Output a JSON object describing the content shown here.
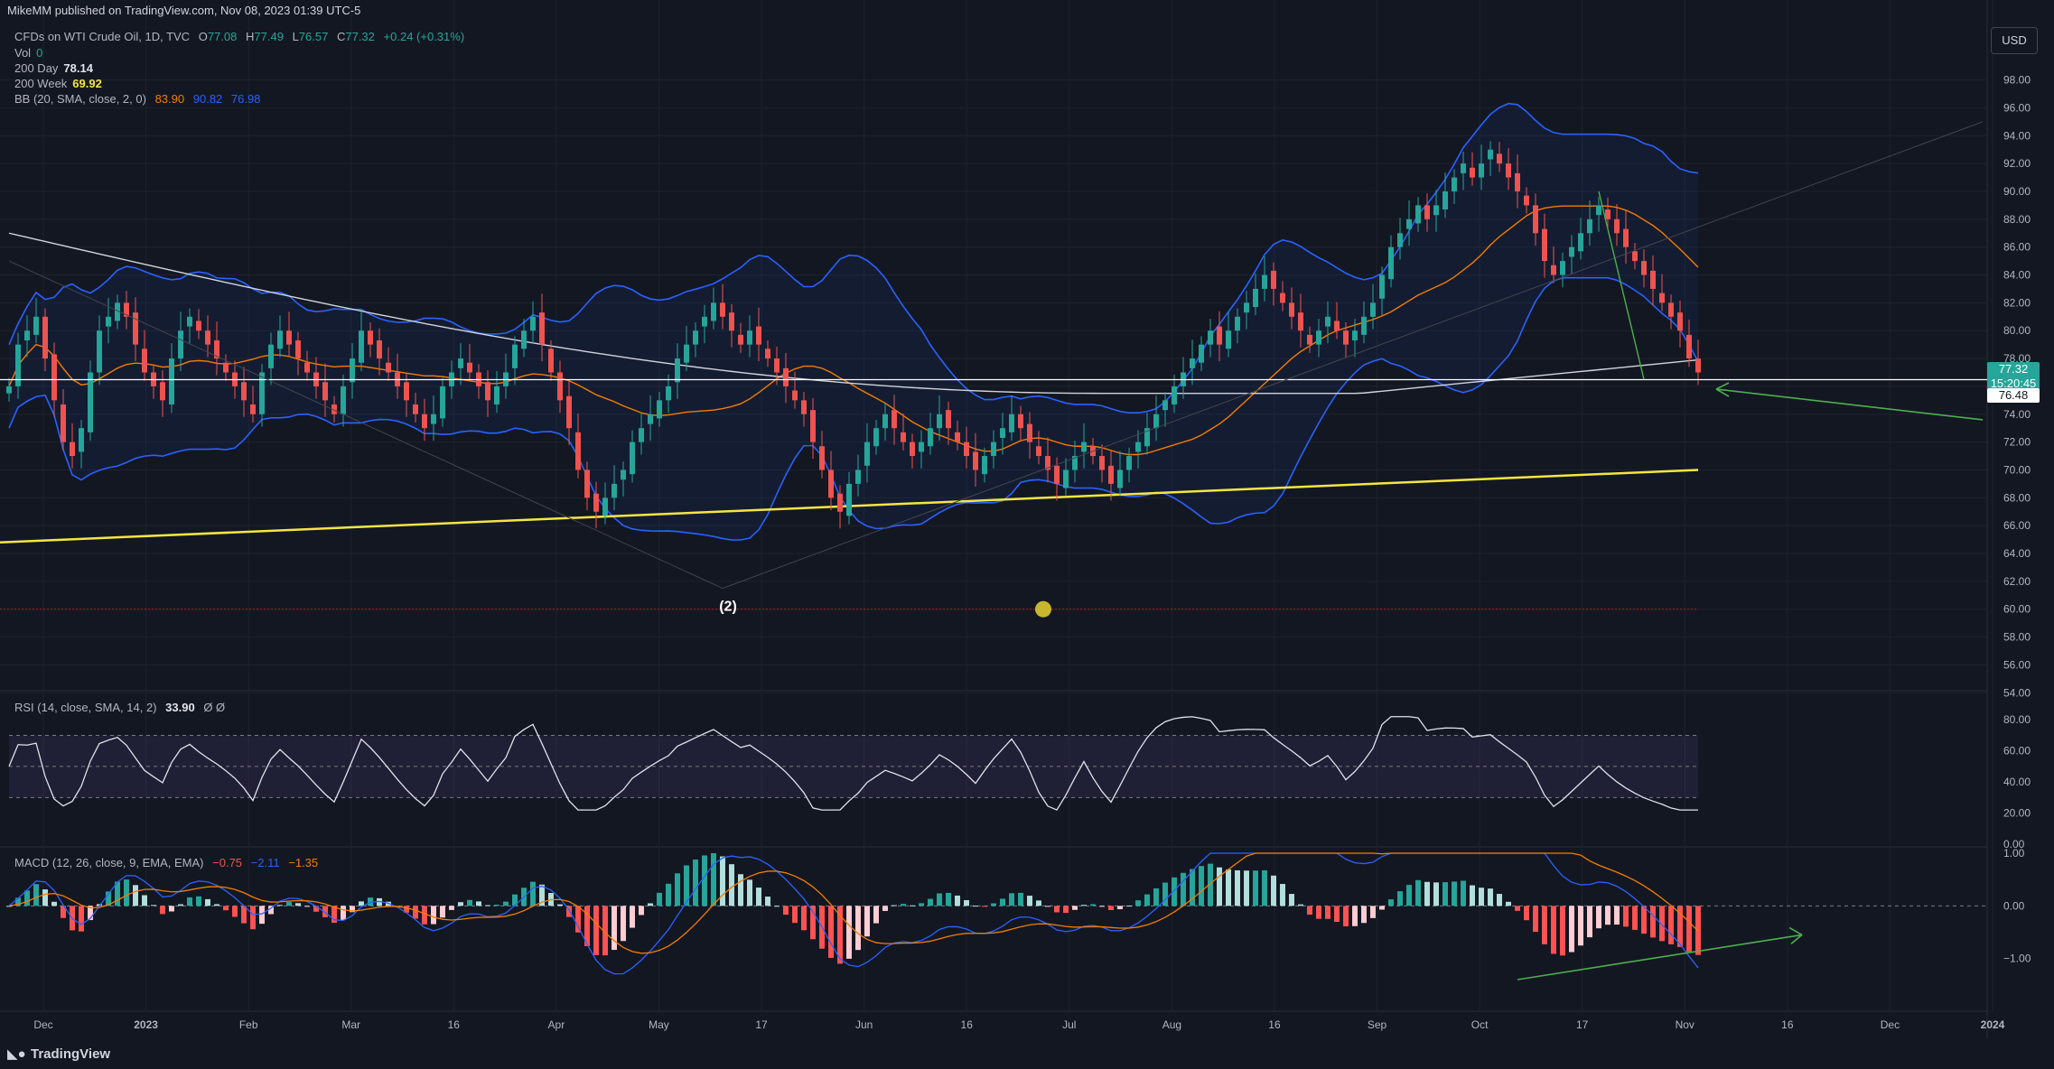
{
  "header": {
    "publisher": "MikeMM published on TradingView.com, Nov 08, 2023 01:39 UTC-5"
  },
  "legend": {
    "symbol": "CFDs on WTI Crude Oil, 1D, TVC",
    "ohlc": {
      "o_label": "O",
      "o": "77.08",
      "h_label": "H",
      "h": "77.49",
      "l_label": "L",
      "l": "76.57",
      "c_label": "C",
      "c": "77.32",
      "change": "+0.24 (+0.31%)"
    },
    "vol_label": "Vol",
    "vol": "0",
    "ma200d_label": "200 Day",
    "ma200d": "78.14",
    "ma200w_label": "200 Week",
    "ma200w": "69.92",
    "bb_label": "BB (20, SMA, close, 2, 0)",
    "bb_mid": "83.90",
    "bb_upper": "90.82",
    "bb_lower": "76.98",
    "rsi_label": "RSI (14, close, SMA, 14, 2)",
    "rsi": "33.90",
    "rsi_extra": "Ø Ø",
    "macd_label": "MACD (12, 26, close, 9, EMA, EMA)",
    "macd_hist": "−0.75",
    "macd": "−2.11",
    "macd_signal": "−1.35"
  },
  "currency_button": "USD",
  "price_tags": {
    "last": "77.32",
    "countdown": "15:20:45",
    "hline": "76.48"
  },
  "annotations": {
    "wave_label": "(2)"
  },
  "footer": {
    "brand": "TradingView"
  },
  "colors": {
    "bg": "#131722",
    "up": "#26a69a",
    "down": "#ef5350",
    "bb": "#2962ff",
    "ma_orange": "#f57c00",
    "ma200w": "#f5e642",
    "ma200d": "#d1d4dc",
    "green_arrow": "#4caf50"
  },
  "chart_data": {
    "type": "candlestick",
    "price_axis": {
      "ticks": [
        "98.00",
        "96.00",
        "94.00",
        "92.00",
        "90.00",
        "88.00",
        "86.00",
        "84.00",
        "82.00",
        "80.00",
        "78.00",
        "76.00",
        "74.00",
        "72.00",
        "70.00",
        "68.00",
        "66.00",
        "64.00",
        "62.00",
        "60.00",
        "58.00",
        "56.00",
        "54.00"
      ],
      "range": [
        53.5,
        100.5
      ]
    },
    "rsi_axis": {
      "ticks": [
        "80.00",
        "60.00",
        "40.00",
        "20.00",
        "0.00"
      ],
      "range": [
        0,
        90
      ],
      "bands": [
        70,
        50,
        30
      ]
    },
    "macd_axis": {
      "ticks": [
        "1.00",
        "0.00",
        "−1.00"
      ],
      "range": [
        -2,
        1.0
      ]
    },
    "time_axis": {
      "ticks": [
        "Dec",
        "2023",
        "Feb",
        "Mar",
        "16",
        "Apr",
        "May",
        "17",
        "Jun",
        "16",
        "Jul",
        "Aug",
        "16",
        "Sep",
        "Oct",
        "17",
        "Nov",
        "16",
        "Dec",
        "2024"
      ]
    },
    "ma_200_week": {
      "start": 64.8,
      "end": 70.0
    },
    "horizontal_lines": [
      76.48,
      60.0
    ],
    "close_series": [
      76,
      79,
      80,
      81,
      78,
      75,
      72,
      71,
      73,
      77,
      80,
      81,
      82,
      81,
      79,
      77,
      76,
      75,
      78,
      80,
      81,
      80,
      79,
      78,
      77,
      76,
      75,
      74,
      77,
      79,
      80,
      79,
      78,
      77,
      76,
      75,
      74,
      76,
      78,
      80,
      79,
      78,
      77,
      76,
      75,
      74,
      73,
      74,
      76,
      77,
      78,
      77,
      76,
      75,
      76,
      77,
      79,
      80,
      81,
      79,
      77,
      75,
      73,
      70,
      68,
      67,
      68,
      69,
      70,
      72,
      73,
      74,
      75,
      76,
      78,
      79,
      80,
      81,
      82,
      81,
      80,
      79,
      80,
      79,
      78,
      77,
      76,
      75,
      74,
      72,
      70,
      68,
      67,
      69,
      70,
      72,
      73,
      74,
      73,
      72,
      71,
      72,
      73,
      74,
      73,
      72,
      71,
      70,
      71,
      72,
      73,
      74,
      73,
      72,
      71,
      70,
      69,
      70,
      71,
      72,
      71,
      70,
      69,
      70,
      71,
      72,
      73,
      74,
      75,
      76,
      77,
      78,
      79,
      80,
      79,
      80,
      81,
      82,
      83,
      84,
      83,
      82,
      81,
      80,
      79,
      80,
      81,
      80,
      79,
      80,
      81,
      82,
      84,
      86,
      87,
      88,
      89,
      88,
      89,
      90,
      91,
      92,
      91,
      92,
      93,
      92,
      91,
      90,
      89,
      87,
      85,
      84,
      85,
      86,
      87,
      88,
      89,
      88,
      87,
      86,
      85,
      84,
      83,
      82,
      81,
      80,
      78,
      77
    ]
  }
}
